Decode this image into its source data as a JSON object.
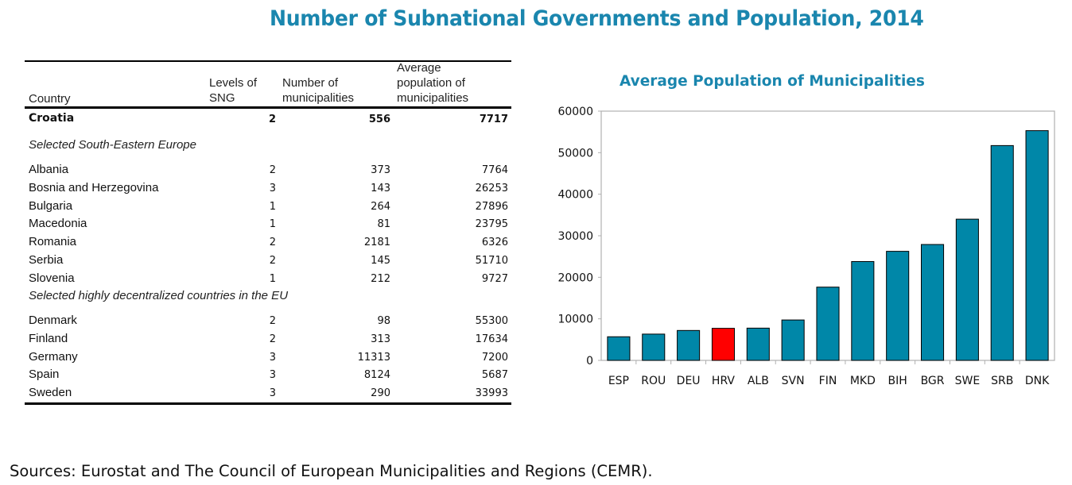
{
  "title": "Number of Subnational Governments and Population, 2014",
  "table": {
    "headers": {
      "country": "Country",
      "levels": [
        "Levels of",
        "SNG"
      ],
      "number": [
        "Number of",
        "municipalities"
      ],
      "average": [
        "Average",
        "population of",
        "municipalities"
      ]
    },
    "highlight_row": {
      "country": "Croatia",
      "levels": "2",
      "number": "556",
      "average": "7717"
    },
    "sections": [
      {
        "label": "Selected South-Eastern Europe",
        "rows": [
          {
            "country": "Albania",
            "levels": "2",
            "number": "373",
            "average": "7764"
          },
          {
            "country": "Bosnia and Herzegovina",
            "levels": "3",
            "number": "143",
            "average": "26253"
          },
          {
            "country": "Bulgaria",
            "levels": "1",
            "number": "264",
            "average": "27896"
          },
          {
            "country": "Macedonia",
            "levels": "1",
            "number": "81",
            "average": "23795"
          },
          {
            "country": "Romania",
            "levels": "2",
            "number": "2181",
            "average": "6326"
          },
          {
            "country": "Serbia",
            "levels": "2",
            "number": "145",
            "average": "51710"
          },
          {
            "country": "Slovenia",
            "levels": "1",
            "number": "212",
            "average": "9727"
          }
        ]
      },
      {
        "label": "Selected highly decentralized countries in the EU",
        "rows": [
          {
            "country": "Denmark",
            "levels": "2",
            "number": "98",
            "average": "55300"
          },
          {
            "country": "Finland",
            "levels": "2",
            "number": "313",
            "average": "17634"
          },
          {
            "country": "Germany",
            "levels": "3",
            "number": "11313",
            "average": "7200"
          },
          {
            "country": "Spain",
            "levels": "3",
            "number": "8124",
            "average": "5687"
          },
          {
            "country": "Sweden",
            "levels": "3",
            "number": "290",
            "average": "33993"
          }
        ]
      }
    ]
  },
  "chart_data": {
    "type": "bar",
    "title": "Average Population of Municipalities",
    "xlabel": "",
    "ylabel": "",
    "categories": [
      "ESP",
      "ROU",
      "DEU",
      "HRV",
      "ALB",
      "SVN",
      "FIN",
      "MKD",
      "BIH",
      "BGR",
      "SWE",
      "SRB",
      "DNK"
    ],
    "values": [
      5687,
      6326,
      7200,
      7717,
      7764,
      9727,
      17634,
      23795,
      26253,
      27896,
      33993,
      51710,
      55300
    ],
    "highlight": "HRV",
    "colors": {
      "bar": "#0087a8",
      "highlight": "#ff0000",
      "frame": "#b0b0b0"
    },
    "ylim": [
      0,
      60000
    ],
    "yticks": [
      0,
      10000,
      20000,
      30000,
      40000,
      50000,
      60000
    ],
    "grid": false,
    "legend": "none"
  },
  "footer": "Sources: Eurostat and The Council of European Municipalities and Regions (CEMR)."
}
